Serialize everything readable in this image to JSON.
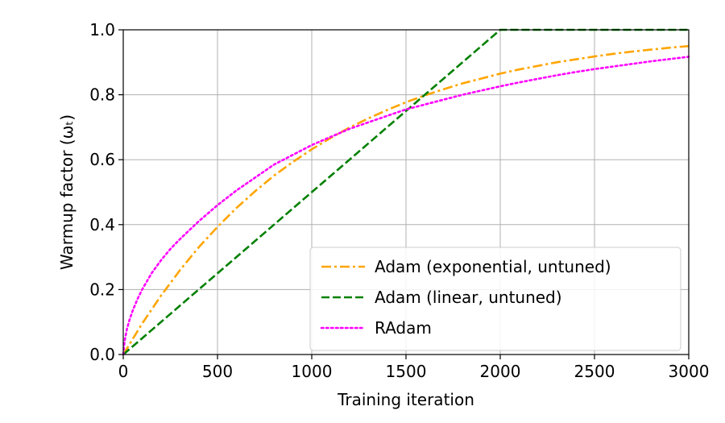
{
  "chart_data": {
    "type": "line",
    "xlabel": "Training iteration",
    "ylabel": "Warmup factor (ωₜ)",
    "xlim": [
      0,
      3000
    ],
    "ylim": [
      0.0,
      1.0
    ],
    "xticks": [
      "0",
      "500",
      "1000",
      "1500",
      "2000",
      "2500",
      "3000"
    ],
    "yticks": [
      "0.0",
      "0.2",
      "0.4",
      "0.6",
      "0.8",
      "1.0"
    ],
    "grid": true,
    "legend_position": "lower-right",
    "series": [
      {
        "name": "Adam (exponential, untuned)",
        "color": "#ffa500",
        "style": "dash-dot",
        "x": [
          0,
          100,
          200,
          300,
          400,
          500,
          600,
          700,
          800,
          900,
          1000,
          1100,
          1200,
          1300,
          1400,
          1500,
          1600,
          1700,
          1800,
          1900,
          2000,
          2100,
          2200,
          2300,
          2400,
          2500,
          2600,
          2700,
          2800,
          2900,
          3000
        ],
        "y": [
          0.0,
          0.095,
          0.181,
          0.259,
          0.33,
          0.393,
          0.451,
          0.503,
          0.551,
          0.593,
          0.632,
          0.667,
          0.699,
          0.727,
          0.753,
          0.777,
          0.798,
          0.817,
          0.835,
          0.85,
          0.865,
          0.878,
          0.889,
          0.9,
          0.909,
          0.918,
          0.926,
          0.933,
          0.939,
          0.945,
          0.95
        ]
      },
      {
        "name": "Adam (linear, untuned)",
        "color": "#008000",
        "style": "dashed",
        "x": [
          0,
          2000,
          3000
        ],
        "y": [
          0.0,
          1.0,
          1.0
        ]
      },
      {
        "name": "RAdam",
        "color": "#ff00ff",
        "style": "dotted",
        "x": [
          0,
          5,
          10,
          20,
          35,
          50,
          75,
          100,
          150,
          200,
          250,
          300,
          400,
          500,
          600,
          700,
          800,
          900,
          1000,
          1100,
          1200,
          1300,
          1400,
          1500,
          1600,
          1700,
          1800,
          1900,
          2000,
          2100,
          2200,
          2300,
          2400,
          2500,
          2600,
          2700,
          2800,
          2900,
          3000
        ],
        "y": [
          0.0,
          0.03,
          0.05,
          0.08,
          0.11,
          0.135,
          0.17,
          0.2,
          0.25,
          0.29,
          0.325,
          0.355,
          0.41,
          0.46,
          0.505,
          0.545,
          0.585,
          0.615,
          0.645,
          0.67,
          0.695,
          0.715,
          0.735,
          0.755,
          0.77,
          0.785,
          0.8,
          0.813,
          0.826,
          0.838,
          0.849,
          0.86,
          0.87,
          0.879,
          0.887,
          0.895,
          0.903,
          0.91,
          0.917
        ]
      }
    ]
  }
}
